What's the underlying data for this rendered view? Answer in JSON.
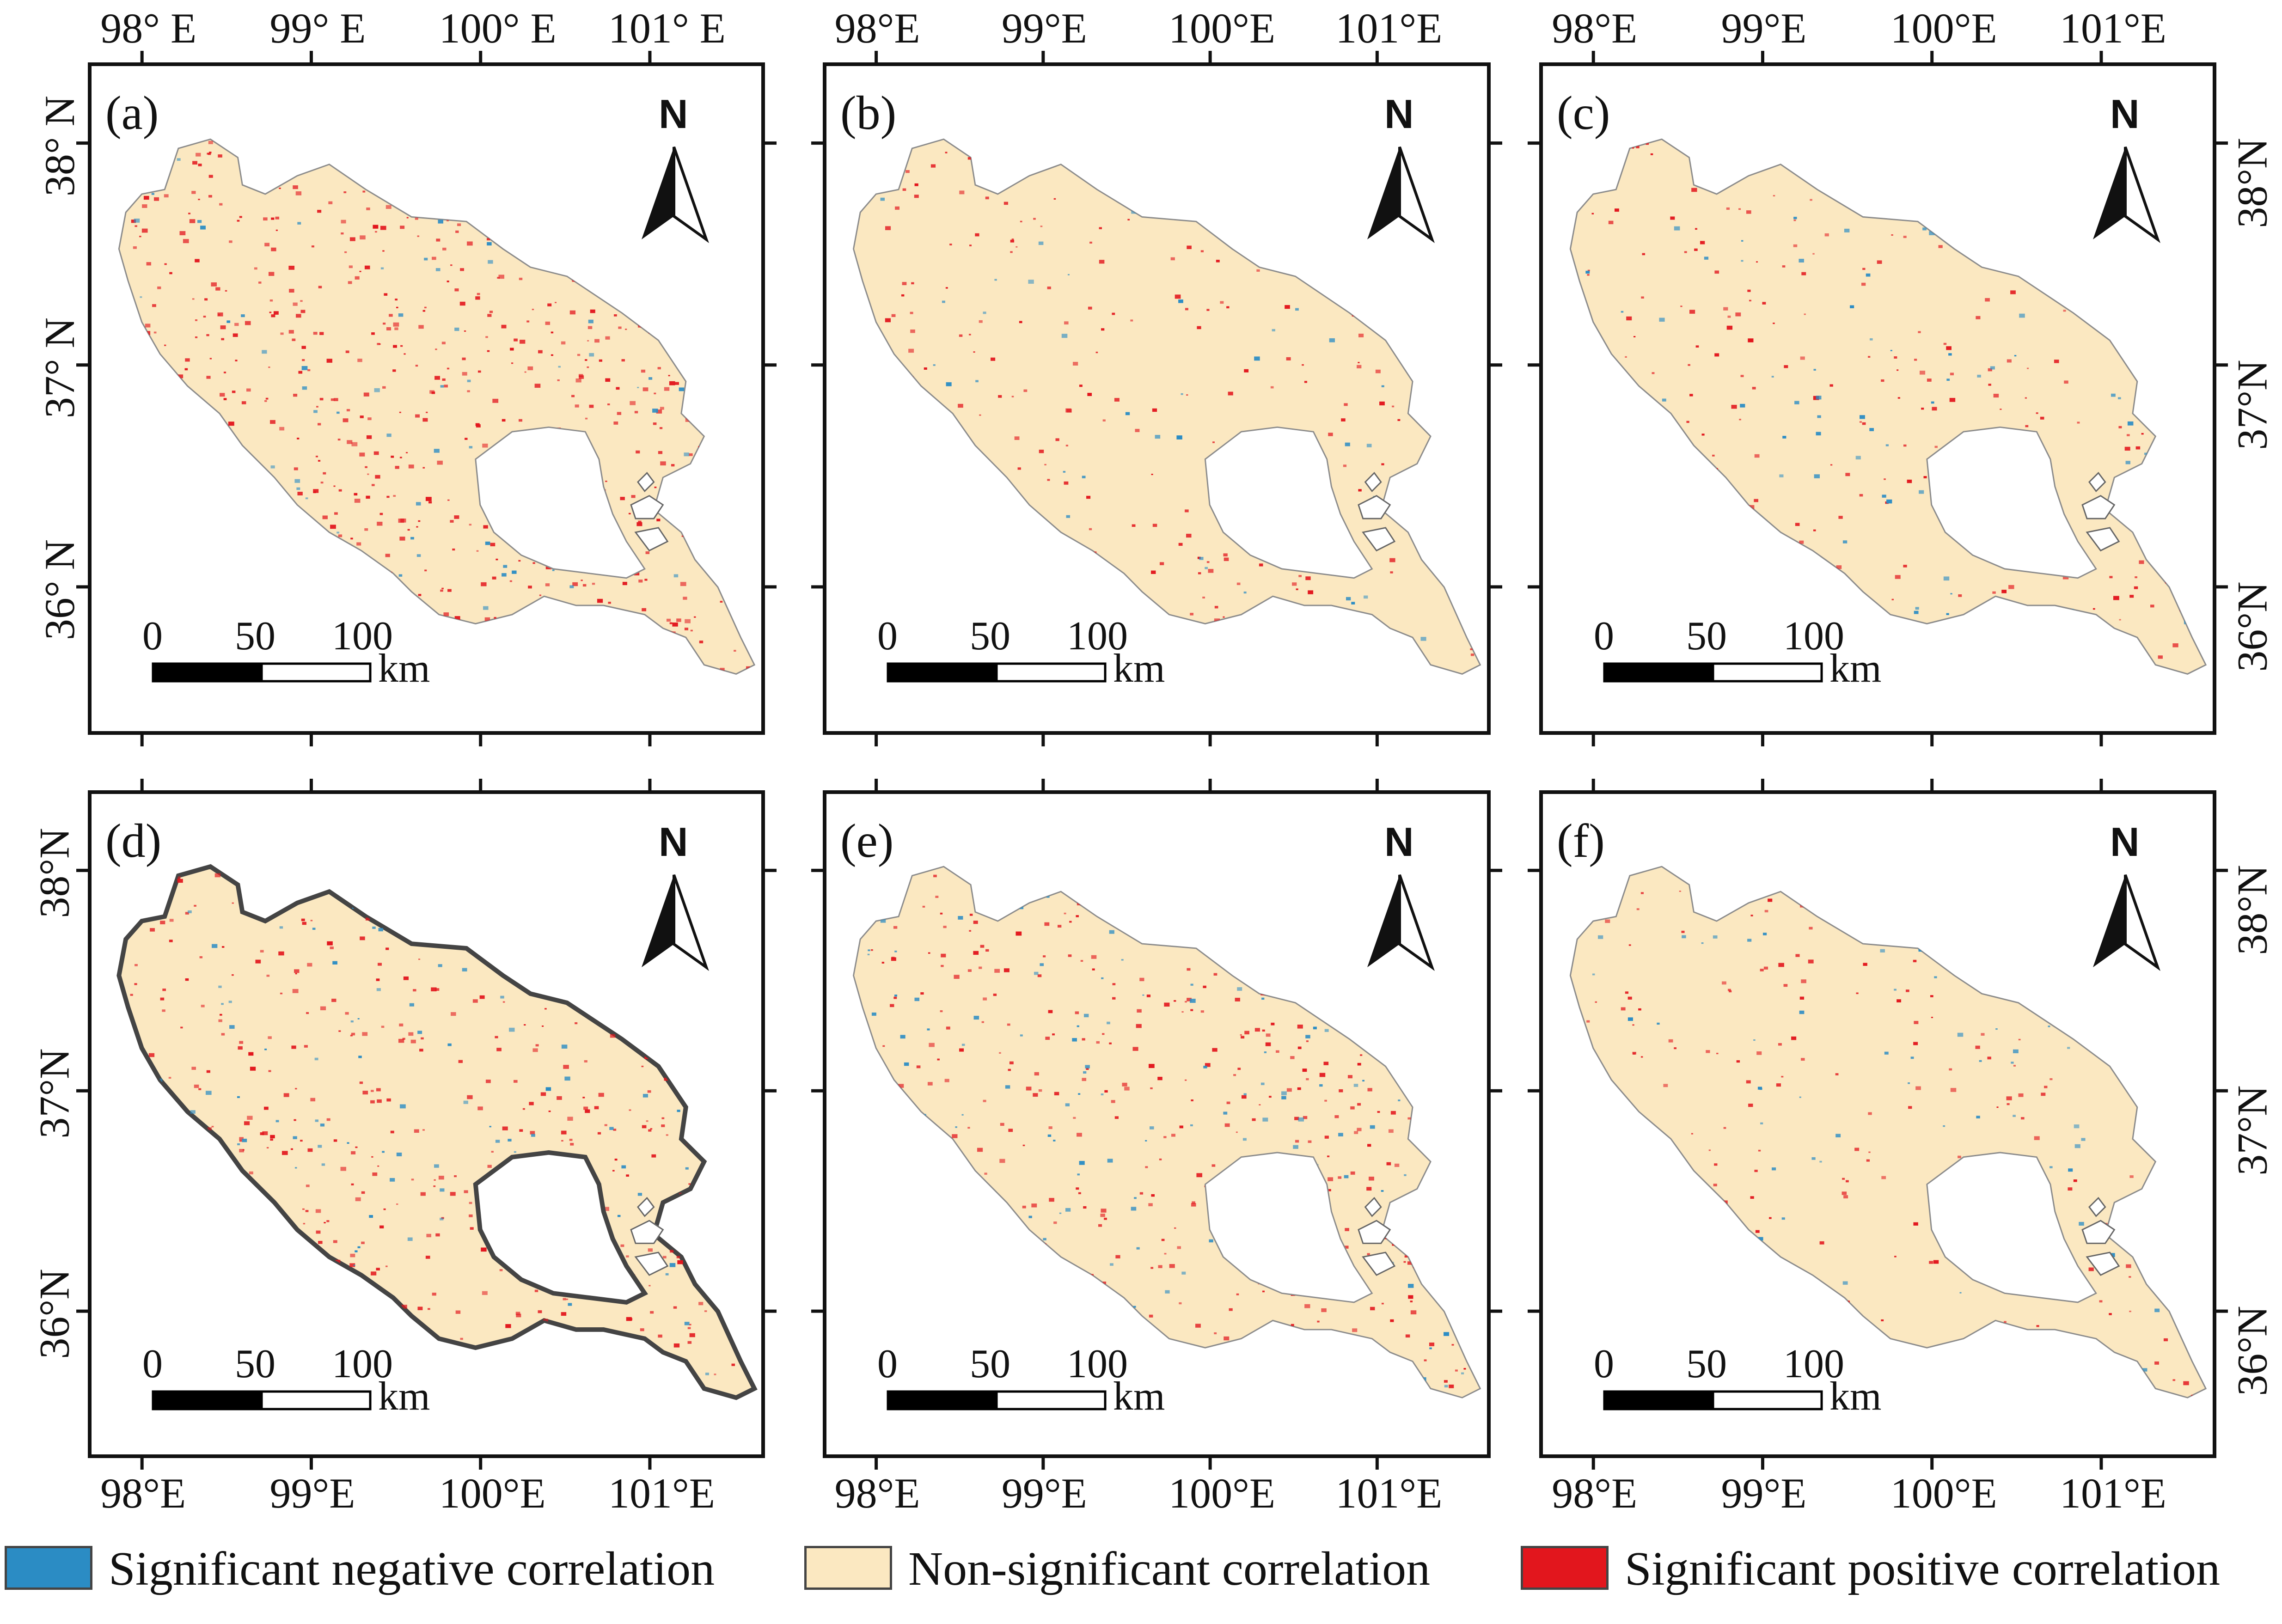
{
  "panels": [
    {
      "id": "a",
      "label": "(a)",
      "top_lon": [
        "98° E",
        "99° E",
        "100° E",
        "101° E"
      ],
      "top_lat": [
        "38° N",
        "37° N",
        "36° N"
      ],
      "show_top": true,
      "show_bottom": false,
      "show_left": true,
      "show_right": false,
      "red": 0.9,
      "blue": 0.25,
      "thick_outline": false
    },
    {
      "id": "b",
      "label": "(b)",
      "top_lon": [
        "98°E",
        "99°E",
        "100°E",
        "101°E"
      ],
      "show_top": true,
      "show_bottom": false,
      "show_left": false,
      "show_right": false,
      "red": 0.3,
      "blue": 0.15,
      "thick_outline": false
    },
    {
      "id": "c",
      "label": "(c)",
      "top_lon": [
        "98°E",
        "99°E",
        "100°E",
        "101°E"
      ],
      "right_lat": [
        "38°N",
        "37°N",
        "36°N"
      ],
      "show_top": true,
      "show_bottom": false,
      "show_left": false,
      "show_right": true,
      "red": 0.35,
      "blue": 0.2,
      "thick_outline": false
    },
    {
      "id": "d",
      "label": "(d)",
      "bottom_lon": [
        "98°E",
        "99°E",
        "100°E",
        "101°E"
      ],
      "left_lat": [
        "38°N",
        "37°N",
        "36°N"
      ],
      "show_top": false,
      "show_bottom": true,
      "show_left": true,
      "show_right": false,
      "red": 0.6,
      "blue": 0.3,
      "thick_outline": true
    },
    {
      "id": "e",
      "label": "(e)",
      "bottom_lon": [
        "98°E",
        "99°E",
        "100°E",
        "101°E"
      ],
      "show_top": false,
      "show_bottom": true,
      "show_left": false,
      "show_right": false,
      "red": 0.55,
      "blue": 0.35,
      "thick_outline": false
    },
    {
      "id": "f",
      "label": "(f)",
      "bottom_lon": [
        "98°E",
        "99°E",
        "100°E",
        "101°E"
      ],
      "right_lat": [
        "38°N",
        "37°N",
        "36°N"
      ],
      "show_top": false,
      "show_bottom": true,
      "show_left": false,
      "show_right": true,
      "red": 0.3,
      "blue": 0.2,
      "thick_outline": false
    }
  ],
  "north_arrow": {
    "label": "N"
  },
  "scale_bar": {
    "ticks": [
      "0",
      "50",
      "100"
    ],
    "unit": "km"
  },
  "legend": [
    {
      "label": "Significant negative correlation",
      "color": "#2b8cc4"
    },
    {
      "label": "Non-significant correlation",
      "color": "#fbe8c1"
    },
    {
      "label": "Significant positive correlation",
      "color": "#e2161d"
    }
  ],
  "colors": {
    "basin_fill": "#fbe8c1",
    "basin_outline": "#8c8c8c",
    "lake_fill": "#ffffff",
    "positive": "#e2161d",
    "negative": "#2b8cc4"
  }
}
